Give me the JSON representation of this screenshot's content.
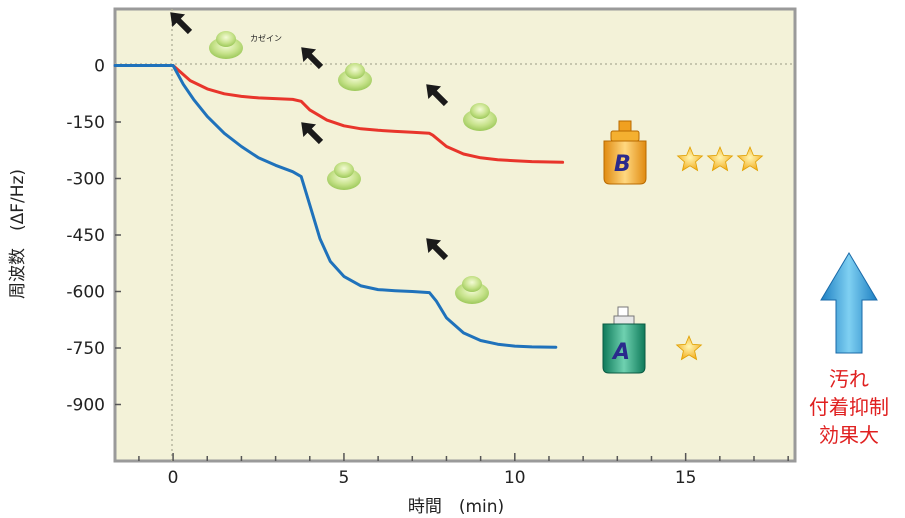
{
  "chart_data": {
    "type": "line",
    "title": "",
    "xlabel": "時間　(min)",
    "ylabel": "周波数　(ΔF/Hz)",
    "xlim": [
      -1.7,
      18.2
    ],
    "ylim": [
      -1050,
      150
    ],
    "xticks": [
      0,
      5,
      10,
      15
    ],
    "yticks": [
      0,
      -150,
      -300,
      -450,
      -600,
      -750,
      -900
    ],
    "grid": false,
    "legend": "none",
    "colors": {
      "plot_bg": "#f3f2d8",
      "frame": "#9a9a9a",
      "series_red": "#e8352b",
      "series_blue": "#1f72bb",
      "arrow": "#1a1a1a",
      "note_text": "#e02020",
      "big_arrow": "#2a9fd6"
    },
    "series": [
      {
        "label": "B",
        "color": "#e8352b",
        "points": [
          [
            -1.7,
            0
          ],
          [
            0,
            0
          ],
          [
            0.5,
            -40
          ],
          [
            1,
            -62
          ],
          [
            1.5,
            -75
          ],
          [
            2,
            -82
          ],
          [
            2.5,
            -86
          ],
          [
            3,
            -88
          ],
          [
            3.5,
            -90
          ],
          [
            3.75,
            -95
          ],
          [
            4,
            -118
          ],
          [
            4.5,
            -145
          ],
          [
            5,
            -160
          ],
          [
            5.5,
            -168
          ],
          [
            6,
            -172
          ],
          [
            6.5,
            -175
          ],
          [
            7,
            -177
          ],
          [
            7.5,
            -180
          ],
          [
            7.6,
            -185
          ],
          [
            8,
            -215
          ],
          [
            8.5,
            -235
          ],
          [
            9,
            -245
          ],
          [
            9.5,
            -250
          ],
          [
            10,
            -253
          ],
          [
            10.5,
            -255
          ],
          [
            11.4,
            -257
          ]
        ]
      },
      {
        "label": "A",
        "color": "#1f72bb",
        "points": [
          [
            -1.7,
            0
          ],
          [
            0,
            0
          ],
          [
            0.3,
            -50
          ],
          [
            0.6,
            -90
          ],
          [
            1,
            -135
          ],
          [
            1.5,
            -180
          ],
          [
            2,
            -215
          ],
          [
            2.5,
            -245
          ],
          [
            3,
            -265
          ],
          [
            3.5,
            -282
          ],
          [
            3.75,
            -295
          ],
          [
            4,
            -370
          ],
          [
            4.3,
            -460
          ],
          [
            4.6,
            -520
          ],
          [
            5,
            -560
          ],
          [
            5.5,
            -585
          ],
          [
            6,
            -595
          ],
          [
            6.5,
            -598
          ],
          [
            7,
            -600
          ],
          [
            7.5,
            -603
          ],
          [
            7.7,
            -625
          ],
          [
            8,
            -670
          ],
          [
            8.5,
            -710
          ],
          [
            9,
            -730
          ],
          [
            9.5,
            -740
          ],
          [
            10,
            -745
          ],
          [
            10.5,
            -747
          ],
          [
            11.2,
            -748
          ]
        ]
      }
    ],
    "annotations": {
      "casein_label": "カゼイン",
      "arrows_at_minutes": [
        0,
        3.75,
        7.6
      ],
      "product_b_letter": "B",
      "product_a_letter": "A",
      "product_b_stars": 3,
      "product_a_stars": 1,
      "side_note_lines": [
        "汚れ",
        "付着抑制",
        "効果大"
      ]
    }
  }
}
